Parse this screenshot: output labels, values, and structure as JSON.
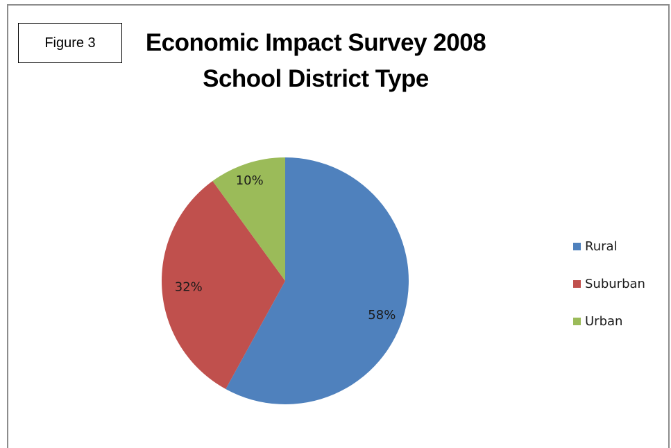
{
  "figure_label": "Figure 3",
  "chart_data": {
    "type": "pie",
    "title_line1": "Economic Impact Survey 2008",
    "title_line2": "School District Type",
    "legend_position": "right",
    "slices": [
      {
        "name": "Rural",
        "value": 58,
        "label": "58%",
        "color": "#4f81bd"
      },
      {
        "name": "Suburban",
        "value": 32,
        "label": "32%",
        "color": "#c0504d"
      },
      {
        "name": "Urban",
        "value": 10,
        "label": "10%",
        "color": "#9bbb59"
      }
    ]
  }
}
